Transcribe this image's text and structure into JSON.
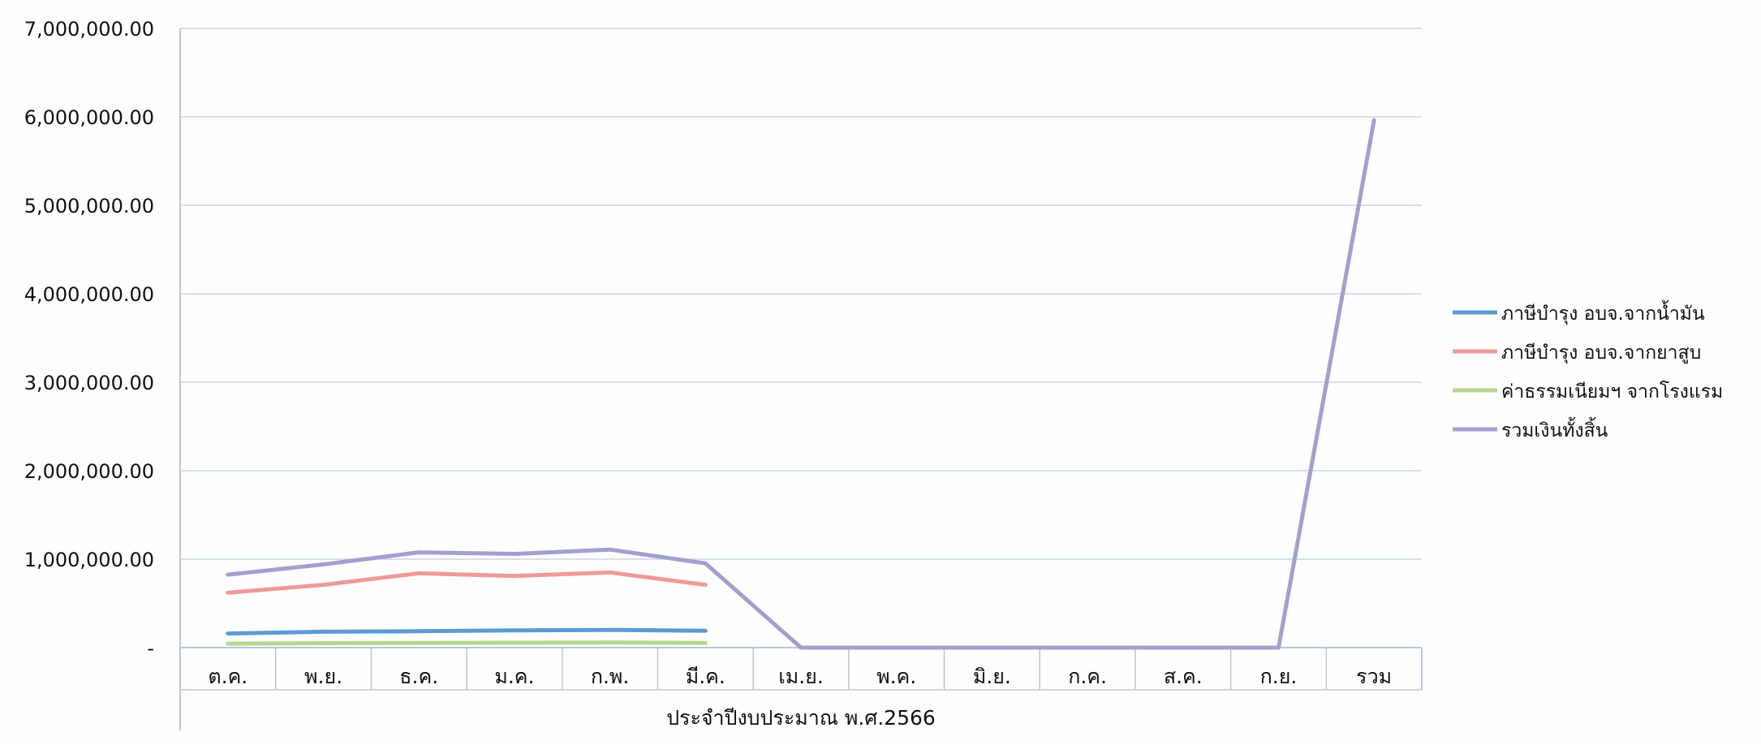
{
  "chart_data": {
    "type": "line",
    "title": "",
    "xlabel": "ประจำปีงบประมาณ พ.ศ.2566",
    "ylabel": "",
    "categories": [
      "ต.ค.",
      "พ.ย.",
      "ธ.ค.",
      "ม.ค.",
      "ก.พ.",
      "มี.ค.",
      "เม.ย.",
      "พ.ค.",
      "มิ.ย.",
      "ก.ค.",
      "ส.ค.",
      "ก.ย.",
      "รวม"
    ],
    "ylim": [
      0,
      7000000
    ],
    "yticks": [
      0,
      1000000,
      2000000,
      3000000,
      4000000,
      5000000,
      6000000,
      7000000
    ],
    "ytick_labels": [
      "-",
      "1,000,000.00",
      "2,000,000.00",
      "3,000,000.00",
      "4,000,000.00",
      "5,000,000.00",
      "6,000,000.00",
      "7,000,000.00"
    ],
    "grid": true,
    "legend_position": "right",
    "series": [
      {
        "name": "ภาษีบำรุง อบจ.จากน้ำมัน",
        "color": "#5b9bd5",
        "values": [
          160000,
          180000,
          185000,
          195000,
          200000,
          190000,
          null,
          null,
          null,
          null,
          null,
          null,
          null
        ]
      },
      {
        "name": "ภาษีบำรุง อบจ.จากยาสูบ",
        "color": "#ec9a98",
        "values": [
          620000,
          710000,
          840000,
          810000,
          850000,
          710000,
          null,
          null,
          null,
          null,
          null,
          null,
          null
        ]
      },
      {
        "name": "ค่าธรรมเนียมฯ จากโรงแรม",
        "color": "#b5d88a",
        "values": [
          45000,
          50000,
          52000,
          55000,
          58000,
          52000,
          null,
          null,
          null,
          null,
          null,
          null,
          null
        ]
      },
      {
        "name": "รวมเงินทั้งสิ้น",
        "color": "#a29fd0",
        "values": [
          825000,
          940000,
          1077000,
          1060000,
          1108000,
          952000,
          0,
          0,
          0,
          0,
          0,
          0,
          5962000
        ]
      }
    ]
  }
}
